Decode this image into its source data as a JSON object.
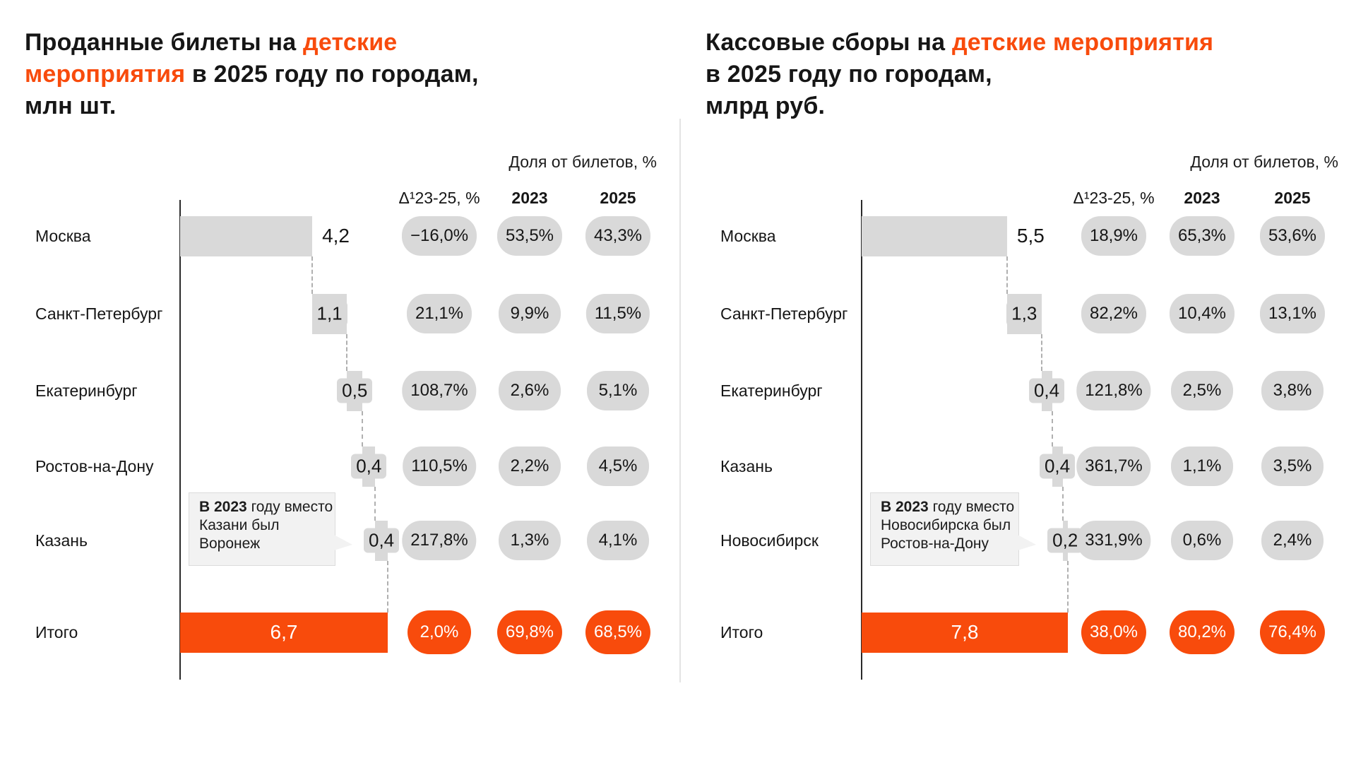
{
  "colors": {
    "orange": "#f84b0c",
    "bar_grey": "#d9d9d9"
  },
  "chart_data": [
    {
      "type": "bar",
      "subtype": "horizontal-waterfall",
      "title": "Проданные билеты на детские мероприятия в 2025 году по городам, млн шт.",
      "title_rich": [
        [
          {
            "text": "Проданные билеты на ",
            "orange": false
          },
          {
            "text": "детские",
            "orange": true
          }
        ],
        [
          {
            "text": "мероприятия",
            "orange": true
          },
          {
            "text": " в 2025 году по городам,",
            "orange": false
          }
        ],
        [
          {
            "text": "млн шт.",
            "orange": false
          }
        ]
      ],
      "share_header": "Доля от билетов, %",
      "columns": [
        "Δ¹23-25, %",
        "2023",
        "2025"
      ],
      "categories": [
        "Москва",
        "Санкт-Петербург",
        "Екатеринбург",
        "Ростов-на-Дону",
        "Казань"
      ],
      "values": [
        4.2,
        1.1,
        0.5,
        0.4,
        0.4
      ],
      "value_labels": [
        "4,2",
        "1,1",
        "0,5",
        "0,4",
        "0,4"
      ],
      "delta_23_25": [
        "−16,0%",
        "21,1%",
        "108,7%",
        "110,5%",
        "217,8%"
      ],
      "share_2023": [
        "53,5%",
        "9,9%",
        "2,6%",
        "2,2%",
        "1,3%"
      ],
      "share_2025": [
        "43,3%",
        "11,5%",
        "5,1%",
        "4,5%",
        "4,1%"
      ],
      "total": {
        "label": "Итого",
        "value": 6.7,
        "value_label": "6,7",
        "delta": "2,0%",
        "share_2023": "69,8%",
        "share_2025": "68,5%"
      },
      "annotation": {
        "target_category": "Казань",
        "lines": [
          [
            {
              "text": "В 2023 ",
              "bold": true
            },
            {
              "text": "году вместо",
              "bold": false
            }
          ],
          [
            {
              "text": "Казани был",
              "bold": false
            }
          ],
          [
            {
              "text": "Воронеж",
              "bold": false
            }
          ]
        ]
      }
    },
    {
      "type": "bar",
      "subtype": "horizontal-waterfall",
      "title": "Кассовые сборы на детские мероприятия в 2025 году по городам, млрд руб.",
      "title_rich": [
        [
          {
            "text": "Кассовые сборы на ",
            "orange": false
          },
          {
            "text": "детские мероприятия",
            "orange": true
          }
        ],
        [
          {
            "text": "в 2025 году по городам,",
            "orange": false
          }
        ],
        [
          {
            "text": "млрд руб.",
            "orange": false
          }
        ]
      ],
      "share_header": "Доля от билетов, %",
      "columns": [
        "Δ¹23-25, %",
        "2023",
        "2025"
      ],
      "categories": [
        "Москва",
        "Санкт-Петербург",
        "Екатеринбург",
        "Казань",
        "Новосибирск"
      ],
      "values": [
        5.5,
        1.3,
        0.4,
        0.4,
        0.2
      ],
      "value_labels": [
        "5,5",
        "1,3",
        "0,4",
        "0,4",
        "0,2"
      ],
      "delta_23_25": [
        "18,9%",
        "82,2%",
        "121,8%",
        "361,7%",
        "331,9%"
      ],
      "share_2023": [
        "65,3%",
        "10,4%",
        "2,5%",
        "1,1%",
        "0,6%"
      ],
      "share_2025": [
        "53,6%",
        "13,1%",
        "3,8%",
        "3,5%",
        "2,4%"
      ],
      "total": {
        "label": "Итого",
        "value": 7.8,
        "value_label": "7,8",
        "delta": "38,0%",
        "share_2023": "80,2%",
        "share_2025": "76,4%"
      },
      "annotation": {
        "target_category": "Новосибирск",
        "lines": [
          [
            {
              "text": "В 2023 ",
              "bold": true
            },
            {
              "text": "году вместо",
              "bold": false
            }
          ],
          [
            {
              "text": "Новосибирска был",
              "bold": false
            }
          ],
          [
            {
              "text": "Ростов-на-Дону",
              "bold": false
            }
          ]
        ]
      }
    }
  ]
}
